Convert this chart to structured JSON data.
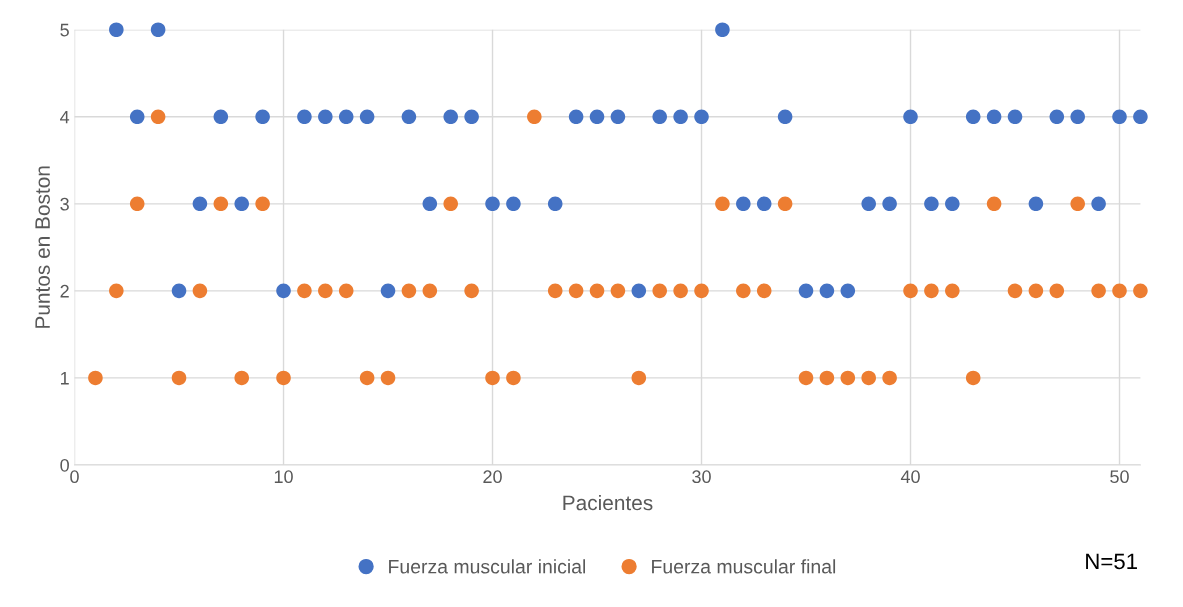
{
  "chart_data": {
    "type": "scatter",
    "xlabel": "Pacientes",
    "ylabel": "Puntos en Boston",
    "x": [
      1,
      2,
      3,
      4,
      5,
      6,
      7,
      8,
      9,
      10,
      11,
      12,
      13,
      14,
      15,
      16,
      17,
      18,
      19,
      20,
      21,
      22,
      23,
      24,
      25,
      26,
      27,
      28,
      29,
      30,
      31,
      32,
      33,
      34,
      35,
      36,
      37,
      38,
      39,
      40,
      41,
      42,
      43,
      44,
      45,
      46,
      47,
      48,
      49,
      50,
      51
    ],
    "series": [
      {
        "name": "Fuerza muscular inicial",
        "color": "#4472c4",
        "values": [
          null,
          5,
          4,
          5,
          2,
          3,
          4,
          3,
          4,
          2,
          4,
          4,
          4,
          4,
          2,
          4,
          3,
          4,
          4,
          3,
          3,
          null,
          3,
          4,
          4,
          4,
          2,
          4,
          4,
          4,
          5,
          3,
          3,
          4,
          2,
          2,
          2,
          3,
          3,
          4,
          3,
          3,
          4,
          4,
          4,
          3,
          4,
          4,
          3,
          4,
          4
        ]
      },
      {
        "name": "Fuerza muscular final",
        "color": "#ed7d31",
        "values": [
          1,
          2,
          3,
          4,
          1,
          2,
          3,
          1,
          3,
          1,
          2,
          2,
          2,
          1,
          1,
          2,
          2,
          3,
          2,
          1,
          1,
          4,
          2,
          2,
          2,
          2,
          1,
          2,
          2,
          2,
          3,
          2,
          2,
          3,
          1,
          1,
          1,
          1,
          1,
          2,
          2,
          2,
          1,
          3,
          2,
          2,
          2,
          3,
          2,
          2,
          2
        ]
      }
    ],
    "xlim": [
      0,
      51
    ],
    "ylim": [
      0,
      5
    ],
    "xticks": [
      0,
      10,
      20,
      30,
      40,
      50
    ],
    "yticks": [
      0,
      1,
      2,
      3,
      4,
      5
    ],
    "grid": true,
    "legend": "bottom",
    "marker": "circle",
    "annotations": [
      "N=51"
    ]
  }
}
